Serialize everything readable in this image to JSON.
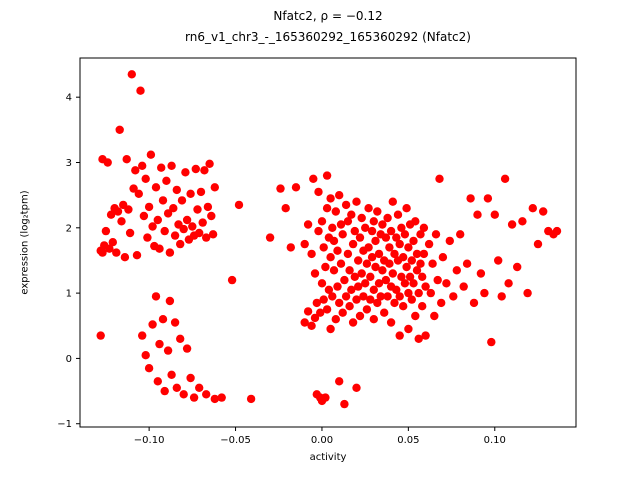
{
  "figure": {
    "background": "#ffffff"
  },
  "chart_data": {
    "type": "scatter",
    "title": "Nfatc2, ρ = −0.12",
    "subtitle": "rn6_v1_chr3_-_165360292_165360292 (Nfatc2)",
    "xlabel": "activity",
    "ylabel": "expression (log₂tpm)",
    "xlim": [
      -0.14,
      0.147
    ],
    "ylim": [
      -1.05,
      4.6
    ],
    "grid": false,
    "legend": "none",
    "marker_color": "#ff0000",
    "marker_radius": 4.2,
    "x_ticks": {
      "values": [
        -0.1,
        -0.05,
        0.0,
        0.05,
        0.1
      ],
      "labels": [
        "−0.10",
        "−0.05",
        "0.00",
        "0.05",
        "0.10"
      ]
    },
    "y_ticks": {
      "values": [
        -1,
        0,
        1,
        2,
        3,
        4
      ],
      "labels": [
        "−1",
        "0",
        "1",
        "2",
        "3",
        "4"
      ]
    },
    "points": [
      [
        -0.127,
        3.05
      ],
      [
        -0.126,
        1.73
      ],
      [
        -0.125,
        1.95
      ],
      [
        -0.124,
        3.0
      ],
      [
        -0.123,
        1.68
      ],
      [
        -0.122,
        2.2
      ],
      [
        -0.121,
        1.78
      ],
      [
        -0.12,
        2.3
      ],
      [
        -0.119,
        1.62
      ],
      [
        -0.118,
        2.25
      ],
      [
        -0.117,
        3.5
      ],
      [
        -0.116,
        2.1
      ],
      [
        -0.115,
        2.35
      ],
      [
        -0.114,
        1.55
      ],
      [
        -0.113,
        3.05
      ],
      [
        -0.112,
        2.28
      ],
      [
        -0.111,
        1.92
      ],
      [
        -0.11,
        4.35
      ],
      [
        -0.109,
        2.6
      ],
      [
        -0.108,
        2.88
      ],
      [
        -0.107,
        1.58
      ],
      [
        -0.106,
        2.52
      ],
      [
        -0.105,
        4.1
      ],
      [
        -0.104,
        2.95
      ],
      [
        -0.103,
        2.18
      ],
      [
        -0.102,
        2.75
      ],
      [
        -0.101,
        1.85
      ],
      [
        -0.1,
        2.32
      ],
      [
        -0.099,
        3.12
      ],
      [
        -0.098,
        2.02
      ],
      [
        -0.097,
        1.72
      ],
      [
        -0.096,
        2.62
      ],
      [
        -0.095,
        2.12
      ],
      [
        -0.094,
        1.68
      ],
      [
        -0.093,
        2.92
      ],
      [
        -0.092,
        2.42
      ],
      [
        -0.091,
        1.95
      ],
      [
        -0.09,
        2.72
      ],
      [
        -0.089,
        2.22
      ],
      [
        -0.088,
        1.62
      ],
      [
        -0.087,
        2.95
      ],
      [
        -0.086,
        2.3
      ],
      [
        -0.085,
        1.88
      ],
      [
        -0.084,
        2.58
      ],
      [
        -0.083,
        2.05
      ],
      [
        -0.082,
        1.75
      ],
      [
        -0.081,
        2.42
      ],
      [
        -0.08,
        1.98
      ],
      [
        -0.079,
        2.85
      ],
      [
        -0.078,
        2.12
      ],
      [
        -0.077,
        1.82
      ],
      [
        -0.076,
        2.52
      ],
      [
        -0.075,
        2.02
      ],
      [
        -0.074,
        1.88
      ],
      [
        -0.073,
        2.9
      ],
      [
        -0.072,
        2.28
      ],
      [
        -0.071,
        1.92
      ],
      [
        -0.07,
        2.55
      ],
      [
        -0.069,
        2.08
      ],
      [
        -0.068,
        2.88
      ],
      [
        -0.067,
        1.85
      ],
      [
        -0.066,
        2.32
      ],
      [
        -0.065,
        2.98
      ],
      [
        -0.064,
        2.18
      ],
      [
        -0.063,
        1.9
      ],
      [
        -0.062,
        2.62
      ],
      [
        -0.128,
        0.35
      ],
      [
        -0.128,
        1.65
      ],
      [
        -0.127,
        1.62
      ],
      [
        -0.104,
        0.35
      ],
      [
        -0.102,
        0.05
      ],
      [
        -0.1,
        -0.15
      ],
      [
        -0.098,
        0.52
      ],
      [
        -0.096,
        0.95
      ],
      [
        -0.095,
        -0.35
      ],
      [
        -0.094,
        0.22
      ],
      [
        -0.092,
        0.6
      ],
      [
        -0.091,
        -0.5
      ],
      [
        -0.089,
        0.12
      ],
      [
        -0.088,
        0.88
      ],
      [
        -0.087,
        -0.25
      ],
      [
        -0.085,
        0.55
      ],
      [
        -0.084,
        -0.45
      ],
      [
        -0.082,
        0.3
      ],
      [
        -0.08,
        -0.55
      ],
      [
        -0.078,
        0.15
      ],
      [
        -0.076,
        -0.3
      ],
      [
        -0.074,
        -0.6
      ],
      [
        -0.071,
        -0.45
      ],
      [
        -0.067,
        -0.55
      ],
      [
        -0.062,
        -0.62
      ],
      [
        -0.058,
        -0.6
      ],
      [
        -0.052,
        1.2
      ],
      [
        -0.048,
        2.35
      ],
      [
        -0.041,
        -0.62
      ],
      [
        -0.03,
        1.85
      ],
      [
        -0.024,
        2.6
      ],
      [
        -0.021,
        2.3
      ],
      [
        -0.018,
        1.7
      ],
      [
        -0.015,
        2.62
      ],
      [
        -0.01,
        0.55
      ],
      [
        -0.01,
        1.75
      ],
      [
        -0.008,
        0.72
      ],
      [
        -0.008,
        2.05
      ],
      [
        -0.006,
        0.5
      ],
      [
        -0.006,
        1.6
      ],
      [
        -0.005,
        2.75
      ],
      [
        -0.004,
        0.62
      ],
      [
        -0.004,
        1.3
      ],
      [
        -0.003,
        -0.55
      ],
      [
        -0.003,
        0.85
      ],
      [
        -0.002,
        1.95
      ],
      [
        -0.002,
        2.55
      ],
      [
        -0.001,
        -0.6
      ],
      [
        -0.001,
        0.7
      ],
      [
        0.0,
        -0.65
      ],
      [
        0.0,
        1.15
      ],
      [
        0.0,
        2.1
      ],
      [
        0.001,
        0.9
      ],
      [
        0.001,
        1.7
      ],
      [
        0.002,
        -0.6
      ],
      [
        0.002,
        1.4
      ],
      [
        0.003,
        0.75
      ],
      [
        0.003,
        2.3
      ],
      [
        0.003,
        2.8
      ],
      [
        0.004,
        1.05
      ],
      [
        0.004,
        1.85
      ],
      [
        0.005,
        0.45
      ],
      [
        0.005,
        1.55
      ],
      [
        0.005,
        2.45
      ],
      [
        0.006,
        0.95
      ],
      [
        0.006,
        2.0
      ],
      [
        0.007,
        1.35
      ],
      [
        0.007,
        1.8
      ],
      [
        0.008,
        0.6
      ],
      [
        0.008,
        2.25
      ],
      [
        0.009,
        1.1
      ],
      [
        0.009,
        1.65
      ],
      [
        0.01,
        -0.35
      ],
      [
        0.01,
        0.85
      ],
      [
        0.01,
        2.5
      ],
      [
        0.011,
        1.45
      ],
      [
        0.011,
        2.05
      ],
      [
        0.012,
        0.7
      ],
      [
        0.012,
        1.9
      ],
      [
        0.013,
        -0.7
      ],
      [
        0.013,
        1.2
      ],
      [
        0.014,
        0.95
      ],
      [
        0.014,
        2.35
      ],
      [
        0.015,
        1.6
      ],
      [
        0.015,
        2.1
      ],
      [
        0.016,
        0.8
      ],
      [
        0.016,
        1.35
      ],
      [
        0.017,
        1.05
      ],
      [
        0.017,
        2.2
      ],
      [
        0.018,
        0.55
      ],
      [
        0.018,
        1.75
      ],
      [
        0.019,
        1.25
      ],
      [
        0.019,
        1.95
      ],
      [
        0.02,
        -0.45
      ],
      [
        0.02,
        0.9
      ],
      [
        0.02,
        2.4
      ],
      [
        0.021,
        1.5
      ],
      [
        0.021,
        1.1
      ],
      [
        0.022,
        0.65
      ],
      [
        0.022,
        1.85
      ],
      [
        0.023,
        1.3
      ],
      [
        0.023,
        2.15
      ],
      [
        0.024,
        0.95
      ],
      [
        0.024,
        1.65
      ],
      [
        0.025,
        1.15
      ],
      [
        0.025,
        2.0
      ],
      [
        0.026,
        0.75
      ],
      [
        0.026,
        1.45
      ],
      [
        0.027,
        1.7
      ],
      [
        0.027,
        2.3
      ],
      [
        0.028,
        0.9
      ],
      [
        0.028,
        1.25
      ],
      [
        0.029,
        1.55
      ],
      [
        0.029,
        1.95
      ],
      [
        0.03,
        0.6
      ],
      [
        0.03,
        1.05
      ],
      [
        0.03,
        2.1
      ],
      [
        0.031,
        1.4
      ],
      [
        0.031,
        1.8
      ],
      [
        0.032,
        0.85
      ],
      [
        0.032,
        2.25
      ],
      [
        0.033,
        1.15
      ],
      [
        0.033,
        1.6
      ],
      [
        0.034,
        0.95
      ],
      [
        0.034,
        1.9
      ],
      [
        0.035,
        1.35
      ],
      [
        0.035,
        2.05
      ],
      [
        0.036,
        0.7
      ],
      [
        0.036,
        1.5
      ],
      [
        0.037,
        1.2
      ],
      [
        0.037,
        1.85
      ],
      [
        0.038,
        0.95
      ],
      [
        0.038,
        2.15
      ],
      [
        0.039,
        1.45
      ],
      [
        0.039,
        1.7
      ],
      [
        0.04,
        0.55
      ],
      [
        0.04,
        1.1
      ],
      [
        0.04,
        1.95
      ],
      [
        0.041,
        1.3
      ],
      [
        0.041,
        2.4
      ],
      [
        0.042,
        0.85
      ],
      [
        0.042,
        1.6
      ],
      [
        0.043,
        1.05
      ],
      [
        0.043,
        1.85
      ],
      [
        0.044,
        1.5
      ],
      [
        0.044,
        2.2
      ],
      [
        0.045,
        0.35
      ],
      [
        0.045,
        0.95
      ],
      [
        0.045,
        1.75
      ],
      [
        0.046,
        1.25
      ],
      [
        0.046,
        2.0
      ],
      [
        0.047,
        0.8
      ],
      [
        0.047,
        1.55
      ],
      [
        0.048,
        1.15
      ],
      [
        0.048,
        1.9
      ],
      [
        0.049,
        1.4
      ],
      [
        0.049,
        2.3
      ],
      [
        0.05,
        0.45
      ],
      [
        0.05,
        1.0
      ],
      [
        0.05,
        1.7
      ],
      [
        0.051,
        1.25
      ],
      [
        0.051,
        2.05
      ],
      [
        0.052,
        0.9
      ],
      [
        0.052,
        1.5
      ],
      [
        0.053,
        1.15
      ],
      [
        0.053,
        1.8
      ],
      [
        0.054,
        0.65
      ],
      [
        0.054,
        2.1
      ],
      [
        0.055,
        1.35
      ],
      [
        0.055,
        1.6
      ],
      [
        0.056,
        0.3
      ],
      [
        0.056,
        1.0
      ],
      [
        0.057,
        1.45
      ],
      [
        0.057,
        1.9
      ],
      [
        0.058,
        0.8
      ],
      [
        0.058,
        1.25
      ],
      [
        0.059,
        1.6
      ],
      [
        0.059,
        2.0
      ],
      [
        0.06,
        0.35
      ],
      [
        0.06,
        1.1
      ],
      [
        0.062,
        1.75
      ],
      [
        0.063,
        1.0
      ],
      [
        0.064,
        1.45
      ],
      [
        0.065,
        0.65
      ],
      [
        0.066,
        1.9
      ],
      [
        0.067,
        1.2
      ],
      [
        0.068,
        2.75
      ],
      [
        0.069,
        0.85
      ],
      [
        0.07,
        1.55
      ],
      [
        0.072,
        1.15
      ],
      [
        0.074,
        1.8
      ],
      [
        0.076,
        0.95
      ],
      [
        0.078,
        1.35
      ],
      [
        0.08,
        1.9
      ],
      [
        0.082,
        1.1
      ],
      [
        0.084,
        1.45
      ],
      [
        0.086,
        2.45
      ],
      [
        0.088,
        0.85
      ],
      [
        0.09,
        2.2
      ],
      [
        0.092,
        1.3
      ],
      [
        0.094,
        1.0
      ],
      [
        0.096,
        2.45
      ],
      [
        0.098,
        0.25
      ],
      [
        0.1,
        2.2
      ],
      [
        0.102,
        1.5
      ],
      [
        0.104,
        0.95
      ],
      [
        0.106,
        2.75
      ],
      [
        0.108,
        1.15
      ],
      [
        0.11,
        2.05
      ],
      [
        0.113,
        1.4
      ],
      [
        0.116,
        2.1
      ],
      [
        0.119,
        1.0
      ],
      [
        0.122,
        2.3
      ],
      [
        0.125,
        1.75
      ],
      [
        0.128,
        2.25
      ],
      [
        0.131,
        1.95
      ],
      [
        0.134,
        1.9
      ],
      [
        0.136,
        1.95
      ]
    ]
  }
}
